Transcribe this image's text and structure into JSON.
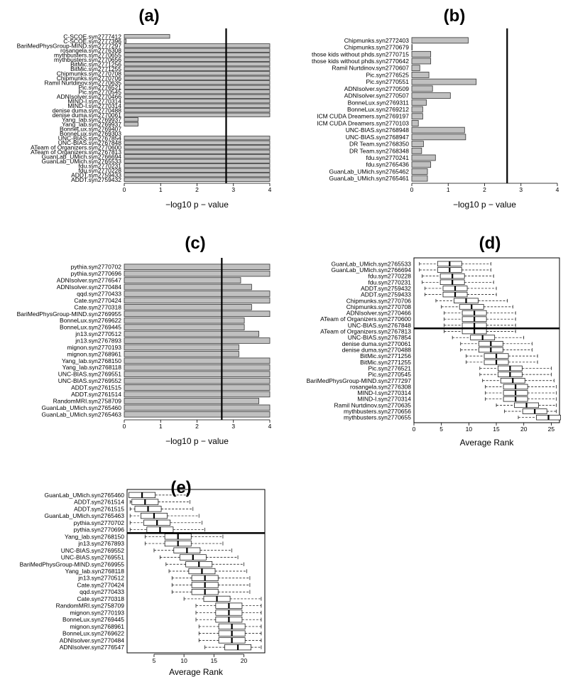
{
  "chart_data": [
    {
      "panel": "(a)",
      "type": "bar",
      "orientation": "horizontal",
      "xlabel": "−log10 p − value",
      "xlim": [
        0,
        4
      ],
      "xticks": [
        "0",
        "1",
        "2",
        "3",
        "4"
      ],
      "reference_line": 2.8,
      "categories": [
        "C-SCOE.syn2777412",
        "C-SCOE.syn2777396",
        "BariMedPhysGroup-MIND.syn2777297",
        "rosangela.syn2776308",
        "mythbusters.syn2770655",
        "mythbusters.syn2770656",
        "BitMic.syn2771256",
        "BitMic.syn2771255",
        "Chipmunks.syn2770708",
        "Chipmunks.syn2770706",
        "Ramil Nurtdinov.syn2770635",
        "Pic.syn2776521",
        "Pic.syn2770545",
        "ADNIsolver.syn2770466",
        "MIND-I.syn2770314",
        "MIND-I.syn2770314",
        "denise duma.syn2770488",
        "denise duma.syn2770061",
        "Yang_lab.syn2769937",
        "Yang_lab.syn2769937",
        "BonneLux.syn2769407",
        "BonneLux.syn2769303",
        "UNC-BIAS.syn2767854",
        "UNC-BIAS.syn2767848",
        "ATeam of Organizers.syn2770600",
        "ATeam of Organizers.syn2767813",
        "GuanLab_UMich.syn2766694",
        "GuanLab_UMich.syn2765533",
        "fdu.syn2770231",
        "fdu.syn2770228",
        "ADDT.syn2759433",
        "ADDT.syn2759432"
      ],
      "values": [
        1.25,
        0.05,
        4,
        4,
        4,
        4,
        4,
        4,
        4,
        4,
        4,
        4,
        4,
        4,
        4,
        4,
        4,
        4,
        0.38,
        0.38,
        0,
        0,
        4,
        4,
        4,
        4,
        4,
        4,
        4,
        4,
        4,
        4
      ]
    },
    {
      "panel": "(b)",
      "type": "bar",
      "orientation": "horizontal",
      "xlabel": "−log10 p − value",
      "xlim": [
        0,
        4
      ],
      "xticks": [
        "0",
        "1",
        "2",
        "3",
        "4"
      ],
      "reference_line": 2.62,
      "categories": [
        "Chipmunks.syn2772403",
        "Chipmunks.syn2770679",
        "those kids without phds.syn2770715",
        "those kids without phds.syn2770642",
        "Ramil Nurtdinov.syn2770607",
        "Pic.syn2776525",
        "Pic.syn2770551",
        "ADNIsolver.syn2770509",
        "ADNIsolver.syn2770507",
        "BonneLux.syn2769311",
        "BonneLux.syn2769212",
        "ICM CUDA Dreamers.syn2769197",
        "ICM CUDA Dreamers.syn2770103",
        "UNC-BIAS.syn2768948",
        "UNC-BIAS.syn2768947",
        "DR Team.syn2768350",
        "DR Team.syn2768348",
        "fdu.syn2770241",
        "fdu.syn2765436",
        "GuanLab_UMich.syn2765462",
        "GuanLab_UMich.syn2765461"
      ],
      "values": [
        1.55,
        0.01,
        0.52,
        0.52,
        0.22,
        0.47,
        1.77,
        0.57,
        1.06,
        0.4,
        0.3,
        0.3,
        0.18,
        1.45,
        1.48,
        0.32,
        0.27,
        0.65,
        0.52,
        0.43,
        0.43
      ]
    },
    {
      "panel": "(c)",
      "type": "bar",
      "orientation": "horizontal",
      "xlabel": "−log10 p − value",
      "xlim": [
        0,
        4
      ],
      "xticks": [
        "0",
        "1",
        "2",
        "3",
        "4"
      ],
      "reference_line": 2.68,
      "categories": [
        "pythia.syn2770702",
        "pythia.syn2770696",
        "ADNIsolver.syn2776547",
        "ADNIsolver.syn2770484",
        "qqd.syn2770433",
        "Cate.syn2770424",
        "Cate.syn2770318",
        "BariMedPhysGroup-MIND.syn2769955",
        "BonneLux.syn2769622",
        "BonneLux.syn2769445",
        "jn13.syn2770512",
        "jn13.syn2767893",
        "mignon.syn2770193",
        "mignon.syn2768961",
        "Yang_lab.syn2768150",
        "Yang_lab.syn2768118",
        "UNC-BIAS.syn2769551",
        "UNC-BIAS.syn2769552",
        "ADDT.syn2761515",
        "ADDT.syn2761514",
        "RandomMRI.syn2758709",
        "GuanLab_UMich.syn2765460",
        "GuanLab_UMich.syn2765463"
      ],
      "values": [
        4,
        4,
        3.2,
        3.5,
        4,
        4,
        3.5,
        4,
        3.3,
        3.3,
        3.7,
        4,
        3.15,
        3.15,
        4,
        4,
        4,
        4,
        4,
        4,
        3.7,
        4,
        4
      ]
    },
    {
      "panel": "(d)",
      "type": "boxplot",
      "orientation": "horizontal",
      "xlabel": "Average Rank",
      "xlim": [
        0,
        26.5
      ],
      "xticks": [
        "0",
        "5",
        "10",
        "15",
        "20",
        "25"
      ],
      "separator_after_index": 10,
      "categories": [
        "GuanLab_UMich.syn2765533",
        "GuanLab_UMich.syn2766694",
        "fdu.syn2770228",
        "fdu.syn2770231",
        "ADDT.syn2759432",
        "ADDT.syn2759433",
        "Chipmunks.syn2770706",
        "Chipmunks.syn2770708",
        "ADNIsolver.syn2770466",
        "ATeam of Organizers.syn2770600",
        "UNC-BIAS.syn2767848",
        "ATeam of Organizers.syn2767813",
        "UNC-BIAS.syn2767854",
        "denise duma.syn2770061",
        "denise duma.syn2770488",
        "BitMic.syn2771256",
        "BitMic.syn2771255",
        "Pic.syn2776521",
        "Pic.syn2770545",
        "BariMedPhysGroup-MIND.syn2777297",
        "rosangela.syn2776308",
        "MIND-I.syn2770314",
        "MIND-I.syn2770314",
        "Ramil Nurtdinov.syn2770635",
        "mythbusters.syn2770656",
        "mythbusters.syn2770655"
      ],
      "medians": [
        6.5,
        6.5,
        7,
        7,
        7.5,
        7.5,
        9.5,
        10.5,
        11,
        11,
        11,
        11,
        12.5,
        14,
        14,
        15,
        15,
        17.5,
        17.5,
        18,
        18.5,
        18.5,
        18.5,
        20.5,
        22,
        24.5
      ]
    },
    {
      "panel": "(e)",
      "type": "boxplot",
      "orientation": "horizontal",
      "xlabel": "Average Rank",
      "xlim": [
        0.5,
        23.5
      ],
      "xticks": [
        "5",
        "10",
        "15",
        "20"
      ],
      "separator_after_index": 5,
      "categories": [
        "GuanLab_UMich.syn2765460",
        "ADDT.syn2761514",
        "ADDT.syn2761515",
        "GuanLab_UMich.syn2765463",
        "pythia.syn2770702",
        "pythia.syn2770696",
        "Yang_lab.syn2768150",
        "jn13.syn2767893",
        "UNC-BIAS.syn2769552",
        "UNC-BIAS.syn2769551",
        "BariMedPhysGroup-MIND.syn2769955",
        "Yang_lab.syn2768118",
        "jn13.syn2770512",
        "Cate.syn2770424",
        "qqd.syn2770433",
        "Cate.syn2770318",
        "RandomMRI.syn2758709",
        "mignon.syn2770193",
        "BonneLux.syn2769445",
        "mignon.syn2768961",
        "BonneLux.syn2769622",
        "ADNIsolver.syn2770484",
        "ADNIsolver.syn2776547"
      ],
      "medians": [
        3,
        3.5,
        4,
        5,
        5.5,
        6,
        9,
        9,
        10.5,
        11.5,
        12.5,
        13,
        13.5,
        13.5,
        13.5,
        15.5,
        17.5,
        17.5,
        17.5,
        18,
        18,
        18,
        19
      ]
    }
  ]
}
